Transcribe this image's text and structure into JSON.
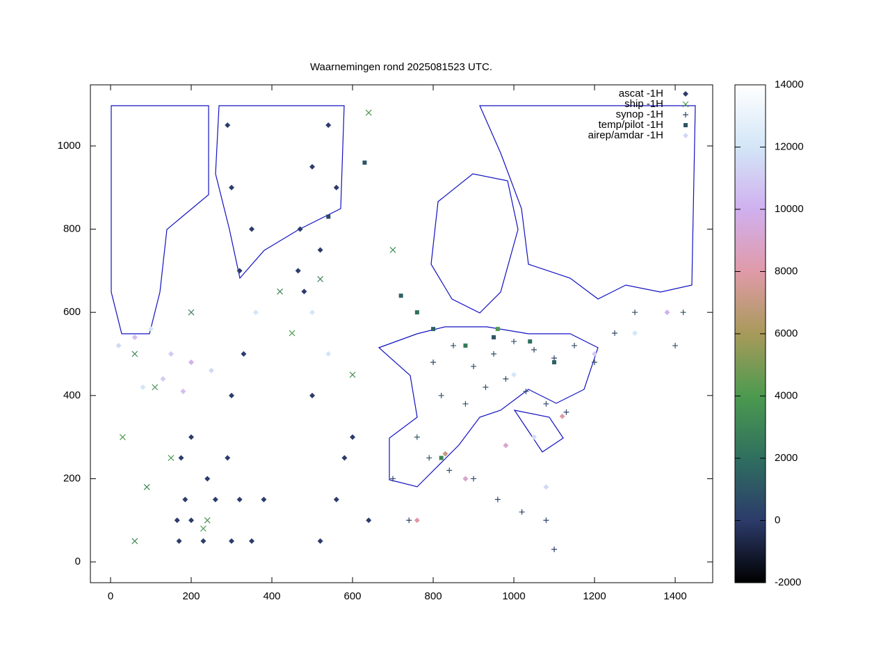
{
  "chart_data": {
    "type": "scatter",
    "title": "Waarnemingen rond 2025081523 UTC.",
    "xlim": [
      -50,
      1493
    ],
    "ylim": [
      -50,
      1147
    ],
    "xticks": [
      0,
      200,
      400,
      600,
      800,
      1000,
      1200,
      1400
    ],
    "yticks": [
      0,
      200,
      400,
      600,
      800,
      1000
    ],
    "zlim": [
      -2000,
      14000
    ],
    "zticks": [
      -2000,
      0,
      2000,
      4000,
      6000,
      8000,
      10000,
      12000,
      14000
    ],
    "colormap": [
      "#000000",
      "#2c3b6a",
      "#2f6f5f",
      "#4c9a4f",
      "#a89a5a",
      "#e09aa8",
      "#d0b0ef",
      "#d3e6f7",
      "#ffffff"
    ],
    "series": [
      {
        "name": "ascat -1H",
        "marker": "diamond",
        "x": [
          170,
          185,
          200,
          175,
          165,
          230,
          260,
          290,
          200,
          240,
          300,
          320,
          350,
          380,
          300,
          330,
          360,
          320,
          350,
          300,
          290,
          520,
          560,
          600,
          640,
          500,
          540,
          580,
          480,
          520,
          560,
          470,
          500,
          540,
          465,
          500
        ],
        "values": [
          50,
          150,
          300,
          250,
          100,
          50,
          150,
          250,
          100,
          200,
          50,
          150,
          50,
          150,
          400,
          500,
          600,
          700,
          800,
          900,
          1050,
          50,
          150,
          300,
          100,
          400,
          500,
          250,
          650,
          750,
          900,
          800,
          950,
          1050,
          700,
          600
        ],
        "z": [
          0,
          0,
          0,
          0,
          0,
          0,
          0,
          0,
          0,
          0,
          0,
          0,
          0,
          0,
          0,
          0,
          12000,
          0,
          0,
          0,
          0,
          0,
          0,
          0,
          0,
          0,
          12000,
          0,
          0,
          0,
          0,
          0,
          0,
          0,
          0,
          12000
        ]
      },
      {
        "name": "ship -1H",
        "marker": "x",
        "x": [
          30,
          90,
          150,
          60,
          200,
          240,
          450,
          520,
          640,
          700,
          420,
          110,
          230,
          60,
          600
        ],
        "values": [
          300,
          180,
          250,
          50,
          600,
          100,
          550,
          680,
          1080,
          750,
          650,
          420,
          80,
          500,
          450
        ],
        "z": [
          4000,
          3000,
          4000,
          3000,
          3000,
          3500,
          4000,
          3000,
          4000,
          3500,
          3000,
          3500,
          4000,
          3000,
          3500
        ]
      },
      {
        "name": "synop -1H",
        "marker": "plus",
        "x": [
          800,
          850,
          900,
          950,
          1000,
          1050,
          1100,
          1150,
          820,
          880,
          930,
          980,
          1030,
          1080,
          1130,
          760,
          790,
          840,
          900,
          960,
          1020,
          1080,
          1200,
          1250,
          1300,
          1400,
          1420,
          700,
          740,
          1100
        ],
        "values": [
          480,
          520,
          470,
          500,
          530,
          510,
          490,
          520,
          400,
          380,
          420,
          440,
          410,
          380,
          360,
          300,
          250,
          220,
          200,
          150,
          120,
          100,
          480,
          550,
          600,
          520,
          600,
          200,
          100,
          30
        ],
        "z": [
          500,
          800,
          600,
          900,
          700,
          500,
          400,
          600,
          1000,
          800,
          900,
          700,
          600,
          500,
          400,
          1200,
          900,
          800,
          600,
          500,
          400,
          300,
          600,
          500,
          700,
          800,
          900,
          400,
          300,
          200
        ]
      },
      {
        "name": "temp/pilot -1H",
        "marker": "square",
        "x": [
          630,
          720,
          760,
          800,
          880,
          950,
          1040,
          1100,
          820,
          960,
          540
        ],
        "values": [
          960,
          640,
          600,
          560,
          520,
          540,
          530,
          480,
          250,
          560,
          830
        ],
        "z": [
          1000,
          1500,
          2000,
          1500,
          2500,
          1000,
          2000,
          1500,
          3000,
          4000,
          500
        ]
      },
      {
        "name": "airep/amdar -1H",
        "marker": "diamond",
        "x": [
          20,
          60,
          100,
          150,
          200,
          250,
          80,
          130,
          180,
          760,
          830,
          880,
          1000,
          1050,
          1120,
          1200,
          1300,
          1380,
          980,
          1080
        ],
        "values": [
          520,
          540,
          560,
          500,
          480,
          460,
          420,
          440,
          410,
          100,
          260,
          200,
          450,
          300,
          350,
          500,
          550,
          600,
          280,
          180
        ],
        "z": [
          11500,
          10500,
          12000,
          11000,
          10000,
          11500,
          12000,
          11000,
          10500,
          8000,
          7000,
          9000,
          12000,
          11500,
          8000,
          11000,
          12000,
          10000,
          9000,
          11500
        ]
      }
    ]
  }
}
